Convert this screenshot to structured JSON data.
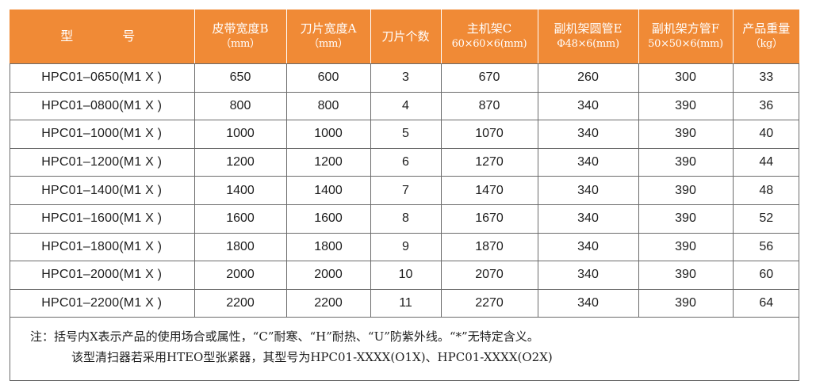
{
  "table": {
    "headers": [
      {
        "line1": "型　　号",
        "line2": ""
      },
      {
        "line1": "皮带宽度B",
        "line2": "（mm）"
      },
      {
        "line1": "刀片宽度A",
        "line2": "（mm）"
      },
      {
        "line1": "刀片个数",
        "line2": ""
      },
      {
        "line1": "主机架C",
        "line2": "60×60×6(mm)"
      },
      {
        "line1": "副机架圆管E",
        "line2": "Φ48×6(mm)"
      },
      {
        "line1": "副机架方管F",
        "line2": "50×50×6(mm)"
      },
      {
        "line1": "产品重量",
        "line2": "（kg）"
      }
    ],
    "rows": [
      [
        "HPC01–0650(M1 X )",
        "650",
        "600",
        "3",
        "670",
        "260",
        "300",
        "33"
      ],
      [
        "HPC01–0800(M1 X )",
        "800",
        "800",
        "4",
        "870",
        "340",
        "390",
        "36"
      ],
      [
        "HPC01–1000(M1 X )",
        "1000",
        "1000",
        "5",
        "1070",
        "340",
        "390",
        "40"
      ],
      [
        "HPC01–1200(M1 X )",
        "1200",
        "1200",
        "6",
        "1270",
        "340",
        "390",
        "44"
      ],
      [
        "HPC01–1400(M1 X )",
        "1400",
        "1400",
        "7",
        "1470",
        "340",
        "390",
        "48"
      ],
      [
        "HPC01–1600(M1 X )",
        "1600",
        "1600",
        "8",
        "1670",
        "340",
        "390",
        "52"
      ],
      [
        "HPC01–1800(M1 X )",
        "1800",
        "1800",
        "9",
        "1870",
        "340",
        "390",
        "56"
      ],
      [
        "HPC01–2000(M1 X )",
        "2000",
        "2000",
        "10",
        "2070",
        "340",
        "390",
        "60"
      ],
      [
        "HPC01–2200(M1 X )",
        "2200",
        "2200",
        "11",
        "2270",
        "340",
        "390",
        "64"
      ]
    ]
  },
  "notes": {
    "line1": "注：括号内X表示产品的使用场合或属性，“C”耐寒、“H”耐热、“U”防紫外线。“*”无特定含义。",
    "line2": "该型清扫器若采用HTEO型张紧器，其型号为HPC01-XXXX(O1X)、HPC01-XXXX(O2X)"
  },
  "colors": {
    "header_bg": "#f08a36",
    "header_text": "#ffffff",
    "border": "#6b6b6b"
  }
}
